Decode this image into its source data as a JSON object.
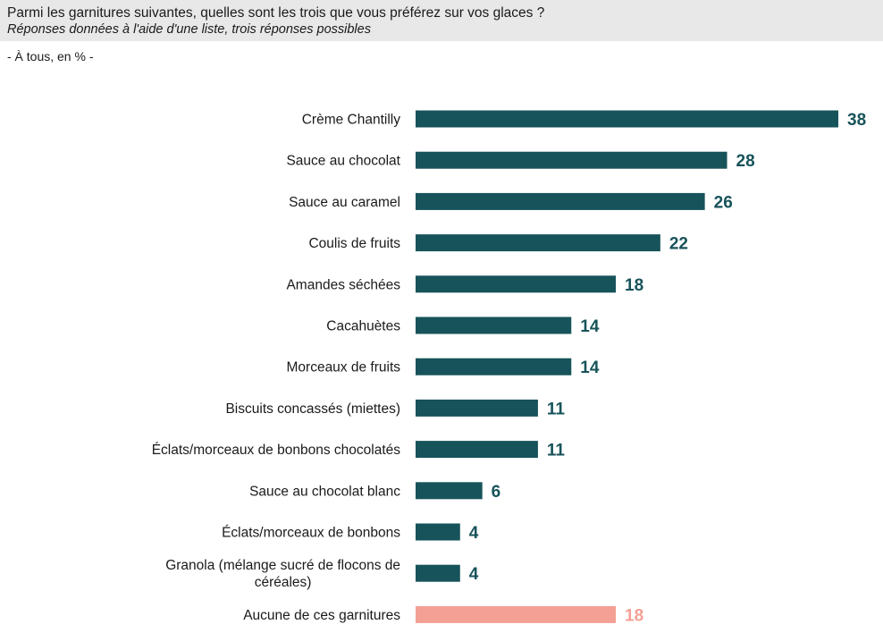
{
  "header": {
    "question": "Parmi les garnitures suivantes, quelles sont les trois que vous préférez sur vos glaces ?",
    "instruction": "Réponses données à l'aide d'une liste, trois réponses possibles",
    "base": "- À tous, en % -"
  },
  "colors": {
    "bar": "#17535a",
    "bar_none": "#f4a095",
    "value_text": "#17535a",
    "value_text_none": "#f4a095",
    "band": "#e8e8e8"
  },
  "chart_data": {
    "type": "bar",
    "orientation": "horizontal",
    "title": "Parmi les garnitures suivantes, quelles sont les trois que vous préférez sur vos glaces ?",
    "subtitle": "Réponses données à l'aide d'une liste, trois réponses possibles",
    "unit": "%",
    "xlim": [
      0,
      38
    ],
    "grid": false,
    "legend": "none",
    "categories": [
      [
        "Crème Chantilly"
      ],
      [
        "Sauce au chocolat"
      ],
      [
        "Sauce au caramel"
      ],
      [
        "Coulis de fruits"
      ],
      [
        "Amandes séchées"
      ],
      [
        "Cacahuètes"
      ],
      [
        "Morceaux de fruits"
      ],
      [
        "Biscuits concassés (miettes)"
      ],
      [
        "Éclats/morceaux de bonbons chocolatés"
      ],
      [
        "Sauce au chocolat blanc"
      ],
      [
        "Éclats/morceaux de bonbons"
      ],
      [
        "Granola (mélange sucré de flocons de",
        "céréales)"
      ],
      [
        "Aucune de ces garnitures"
      ]
    ],
    "values": [
      38,
      28,
      26,
      22,
      18,
      14,
      14,
      11,
      11,
      6,
      4,
      4,
      18
    ],
    "highlight": [
      false,
      false,
      false,
      false,
      false,
      false,
      false,
      false,
      false,
      false,
      false,
      false,
      true
    ]
  }
}
